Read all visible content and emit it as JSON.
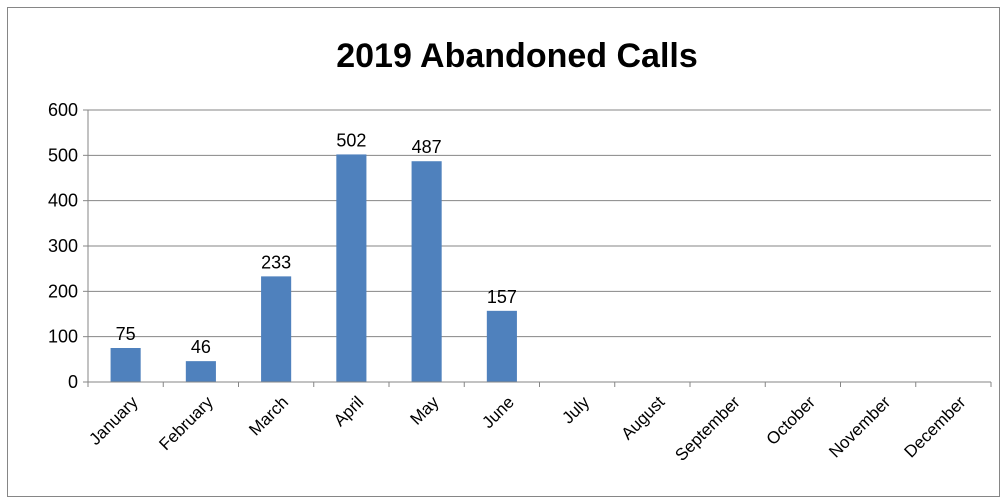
{
  "chart_data": {
    "type": "bar",
    "title": "2019 Abandoned Calls",
    "xlabel": "",
    "ylabel": "",
    "categories": [
      "January",
      "February",
      "March",
      "April",
      "May",
      "June",
      "July",
      "August",
      "September",
      "October",
      "November",
      "December"
    ],
    "values": [
      75,
      46,
      233,
      502,
      487,
      157,
      null,
      null,
      null,
      null,
      null,
      null
    ],
    "data_labels": [
      "75",
      "46",
      "233",
      "502",
      "487",
      "157",
      "",
      "",
      "",
      "",
      "",
      ""
    ],
    "ylim": [
      0,
      600
    ],
    "yticks": [
      0,
      100,
      200,
      300,
      400,
      500,
      600
    ],
    "grid": true,
    "legend": "none",
    "bar_color": "#4f81bd",
    "gridline_color": "#868686"
  }
}
